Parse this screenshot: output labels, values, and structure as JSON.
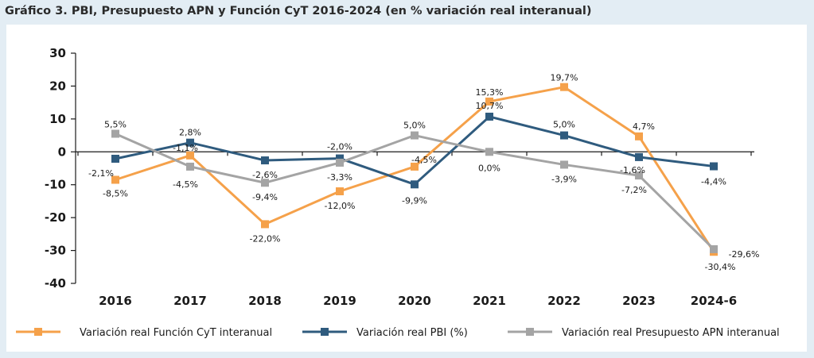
{
  "title": "Gráfico 3. PBI, Presupuesto APN y Función CyT 2016-2024 (en % variación real interanual)",
  "chart_data": {
    "type": "line",
    "categories": [
      "2016",
      "2017",
      "2018",
      "2019",
      "2020",
      "2021",
      "2022",
      "2023",
      "2024-6"
    ],
    "ylim": [
      -40,
      30
    ],
    "yticks": [
      30,
      20,
      10,
      0,
      -10,
      -20,
      -30,
      -40
    ],
    "grid": false,
    "legend_position": "bottom",
    "series": [
      {
        "name": "Variación real Función CyT interanual",
        "color": "#f5a14a",
        "values": [
          -8.5,
          -1.1,
          -22.0,
          -12.0,
          -4.5,
          15.3,
          19.7,
          4.7,
          -30.4
        ],
        "labels": [
          "-8,5%",
          "-1,1%",
          "-22,0%",
          "-12,0%",
          "-4,5%",
          "15,3%",
          "19,7%",
          "4,7%",
          "-30,4%"
        ]
      },
      {
        "name": "Variación real PBI (%)",
        "color": "#2f5b7e",
        "values": [
          -2.1,
          2.8,
          -2.6,
          -2.0,
          -9.9,
          10.7,
          5.0,
          -1.6,
          -4.4
        ],
        "labels": [
          "-2,1%",
          "2,8%",
          "-2,6%",
          "-2,0%",
          "-9,9%",
          "10,7%",
          "5,0%",
          "-1,6%",
          "-4,4%"
        ]
      },
      {
        "name": "Variación real Presupuesto APN interanual",
        "color": "#a4a4a4",
        "values": [
          5.5,
          -4.5,
          -9.4,
          -3.3,
          5.0,
          0.0,
          -3.9,
          -7.2,
          -29.6
        ],
        "labels": [
          "5,5%",
          "-4,5%",
          "-9,4%",
          "-3,3%",
          "5,0%",
          "0,0%",
          "-3,9%",
          "-7,2%",
          "-29,6%"
        ]
      }
    ]
  }
}
